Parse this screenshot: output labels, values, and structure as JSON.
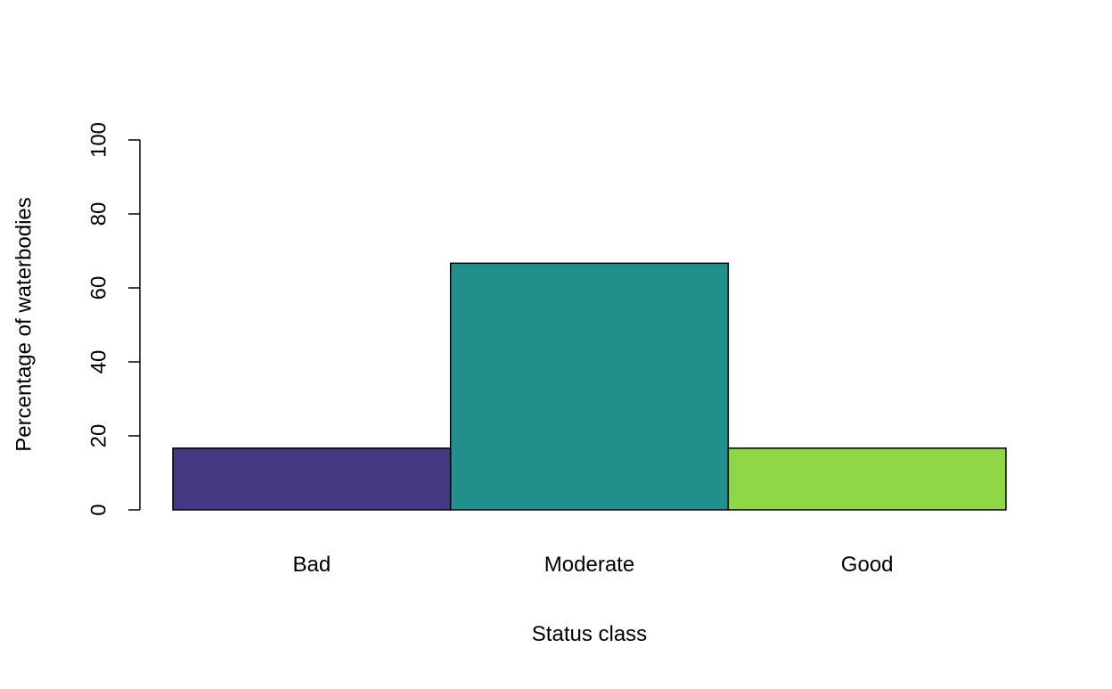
{
  "chart_data": {
    "type": "bar",
    "title": "",
    "xlabel": "Status class",
    "ylabel": "Percentage of waterbodies",
    "categories": [
      "Bad",
      "Moderate",
      "Good"
    ],
    "values": [
      16.67,
      66.67,
      16.67
    ],
    "colors": [
      "#443983",
      "#21908C",
      "#8FD744"
    ],
    "ylim": [
      0,
      100
    ],
    "yticks": [
      0,
      20,
      40,
      60,
      80,
      100
    ],
    "grid": false,
    "legend": "none",
    "bar_border_color": "#000000"
  }
}
